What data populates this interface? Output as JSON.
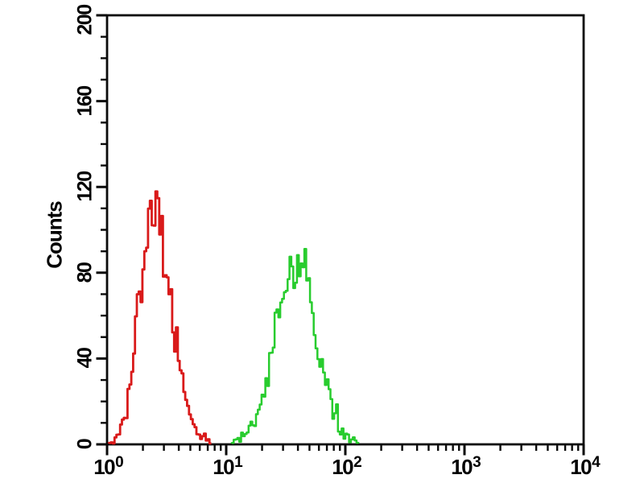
{
  "figure": {
    "background": "#ffffff",
    "axis_color": "#0a0a0a",
    "x_tick_base": "10"
  },
  "chart_data": {
    "type": "area",
    "subtype": "flow-cytometry-overlay-histogram",
    "title": "",
    "xlabel": "",
    "ylabel": "Counts",
    "x_scale": "log10",
    "xlim": [
      1,
      10000
    ],
    "ylim": [
      0,
      200
    ],
    "x_major_tick_labels": [
      "10^0",
      "10^1",
      "10^2",
      "10^3",
      "10^4"
    ],
    "x_decades": [
      0,
      1,
      2,
      3,
      4
    ],
    "x_minor_ticks_per_decade": [
      2,
      3,
      4,
      5,
      6,
      7,
      8,
      9
    ],
    "y_major_ticks": [
      0,
      40,
      80,
      120,
      160,
      200
    ],
    "y_minor_step": 10,
    "grid": false,
    "legend": "none",
    "series": [
      {
        "name": "red-population",
        "color": "#d91a1a",
        "peak_x": 2.4,
        "peak_count": 120,
        "sigma_log10_left": 0.115,
        "sigma_log10_right": 0.16,
        "range_x": [
          1.1,
          8.5
        ],
        "style": "noisy-outline"
      },
      {
        "name": "green-population",
        "color": "#28cc2e",
        "peak_x": 39,
        "peak_count": 93,
        "sigma_log10_left": 0.18,
        "sigma_log10_right": 0.17,
        "range_x": [
          10.5,
          145
        ],
        "style": "noisy-outline"
      }
    ]
  }
}
